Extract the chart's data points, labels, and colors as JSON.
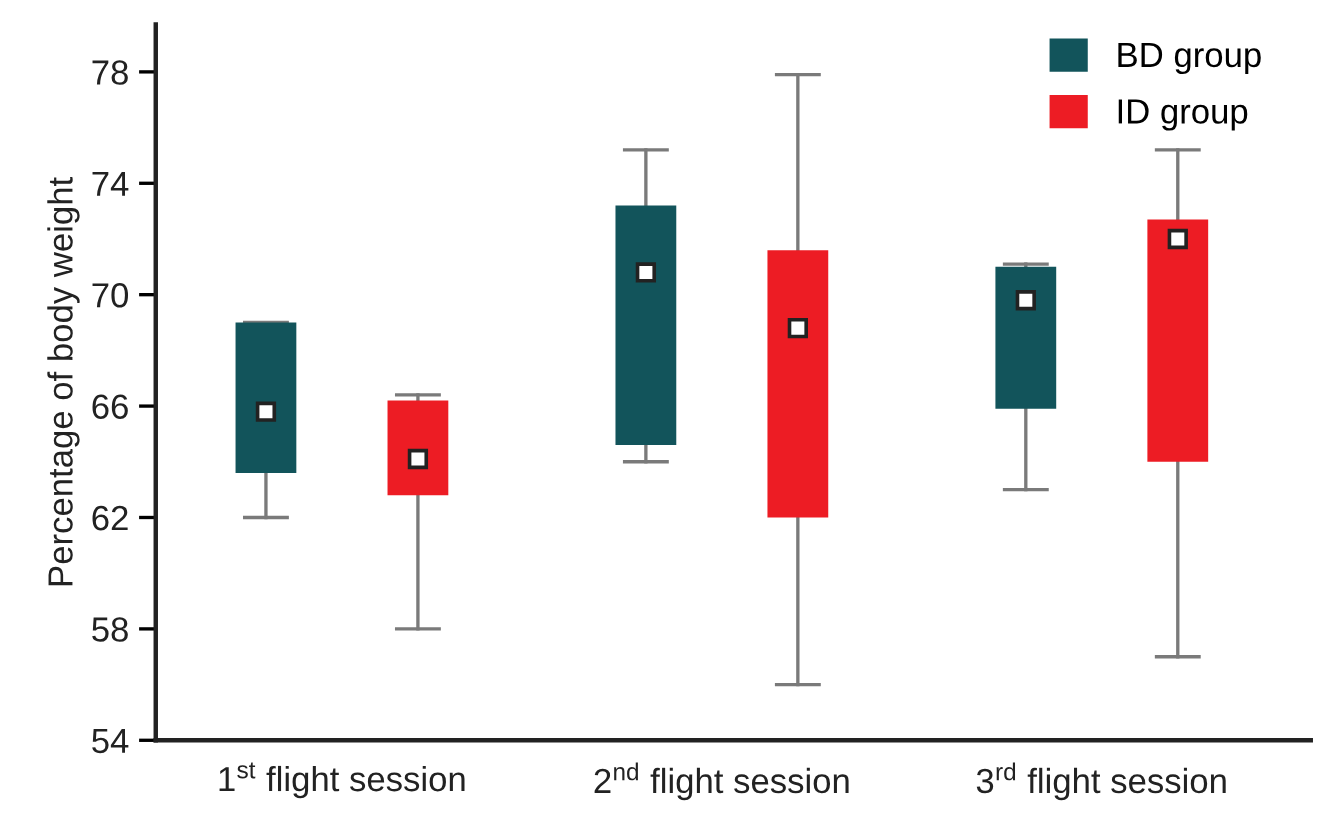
{
  "chart_data": {
    "type": "box",
    "ylabel": "Percentage of body weight",
    "categories": [
      "1$^{st}$ flight session",
      "2$^{nd}$ flight session",
      "3$^{rd}$ flight session"
    ],
    "ylim": [
      54,
      79.7
    ],
    "yticks": [
      54,
      58,
      62,
      66,
      70,
      74,
      78
    ],
    "grid": false,
    "legend": "top right",
    "marker": "square",
    "series": [
      {
        "name": "BD group",
        "color": "#12545b",
        "boxes": [
          {
            "low": 62.0,
            "q1": 63.6,
            "q3": 69.0,
            "high": 69.0,
            "mean": 65.8
          },
          {
            "low": 64.0,
            "q1": 64.6,
            "q3": 73.2,
            "high": 75.2,
            "mean": 70.8
          },
          {
            "low": 63.0,
            "q1": 65.9,
            "q3": 71.0,
            "high": 71.1,
            "mean": 69.8
          }
        ]
      },
      {
        "name": "ID group",
        "color": "#ed1c24",
        "boxes": [
          {
            "low": 58.0,
            "q1": 62.8,
            "q3": 66.2,
            "high": 66.4,
            "mean": 64.1
          },
          {
            "low": 56.0,
            "q1": 62.0,
            "q3": 71.6,
            "high": 77.9,
            "mean": 68.8
          },
          {
            "low": 57.0,
            "q1": 64.0,
            "q3": 72.7,
            "high": 75.2,
            "mean": 72.0
          }
        ]
      }
    ]
  }
}
